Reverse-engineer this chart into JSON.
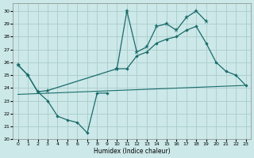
{
  "xlabel": "Humidex (Indice chaleur)",
  "bg_color": "#cce8e8",
  "grid_color": "#aacccc",
  "line_color": "#1a6b6b",
  "xlim": [
    -0.5,
    23.5
  ],
  "ylim": [
    20,
    30.6
  ],
  "yticks": [
    20,
    21,
    22,
    23,
    24,
    25,
    26,
    27,
    28,
    29,
    30
  ],
  "xticks": [
    0,
    1,
    2,
    3,
    4,
    5,
    6,
    7,
    8,
    9,
    10,
    11,
    12,
    13,
    14,
    15,
    16,
    17,
    18,
    19,
    20,
    21,
    22,
    23
  ],
  "line1_x": [
    0,
    1,
    2,
    3,
    4,
    5,
    6,
    7,
    8,
    9
  ],
  "line1_y": [
    25.8,
    25.0,
    23.7,
    23.0,
    21.8,
    21.5,
    21.3,
    20.5,
    23.6,
    23.6
  ],
  "line2_x": [
    0,
    1,
    2,
    3,
    10,
    11,
    12,
    13,
    14,
    15,
    16,
    17,
    18,
    19
  ],
  "line2_y": [
    25.8,
    25.0,
    23.7,
    23.8,
    25.5,
    30.0,
    26.8,
    27.2,
    28.8,
    29.0,
    28.5,
    29.5,
    30.0,
    29.2
  ],
  "line3_x": [
    10,
    11,
    12,
    13,
    14,
    15,
    16,
    17,
    18,
    19,
    20,
    21,
    22,
    23
  ],
  "line3_y": [
    25.5,
    25.5,
    26.5,
    26.8,
    27.5,
    27.8,
    28.0,
    28.5,
    28.8,
    27.5,
    26.0,
    25.3,
    25.0,
    24.2
  ],
  "line4_x": [
    0,
    23
  ],
  "line4_y": [
    23.5,
    24.2
  ]
}
